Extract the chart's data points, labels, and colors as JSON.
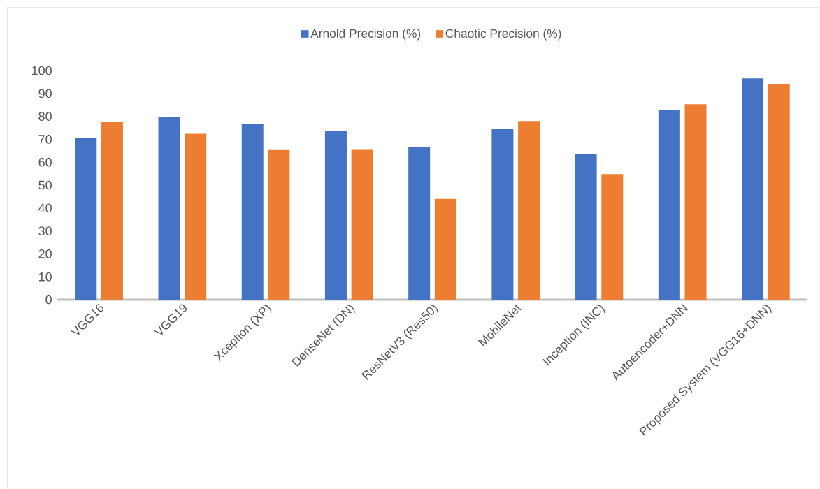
{
  "chart_data": {
    "type": "bar",
    "categories": [
      "VGG16",
      "VGG19",
      "Xception (XP)",
      "DenseNet (DN)",
      "ResNetV3 (Res50)",
      "MobileNet",
      "Inception (INC)",
      "Autoencoder+DNN",
      "Proposed System (VGG16+DNN)"
    ],
    "series": [
      {
        "name": "Arnold Precision (%)",
        "color": "#4472c4",
        "values": [
          70.5,
          79.7,
          76.6,
          73.6,
          66.7,
          74.6,
          63.7,
          82.7,
          96.6
        ]
      },
      {
        "name": "Chaotic Precision (%)",
        "color": "#ed7d31",
        "values": [
          77.6,
          72.4,
          65.3,
          65.4,
          44.0,
          78.0,
          54.8,
          85.3,
          94.2
        ]
      }
    ],
    "ylim": [
      0,
      100
    ],
    "yticks": [
      0,
      10,
      20,
      30,
      40,
      50,
      60,
      70,
      80,
      90,
      100
    ],
    "legend": "top"
  }
}
